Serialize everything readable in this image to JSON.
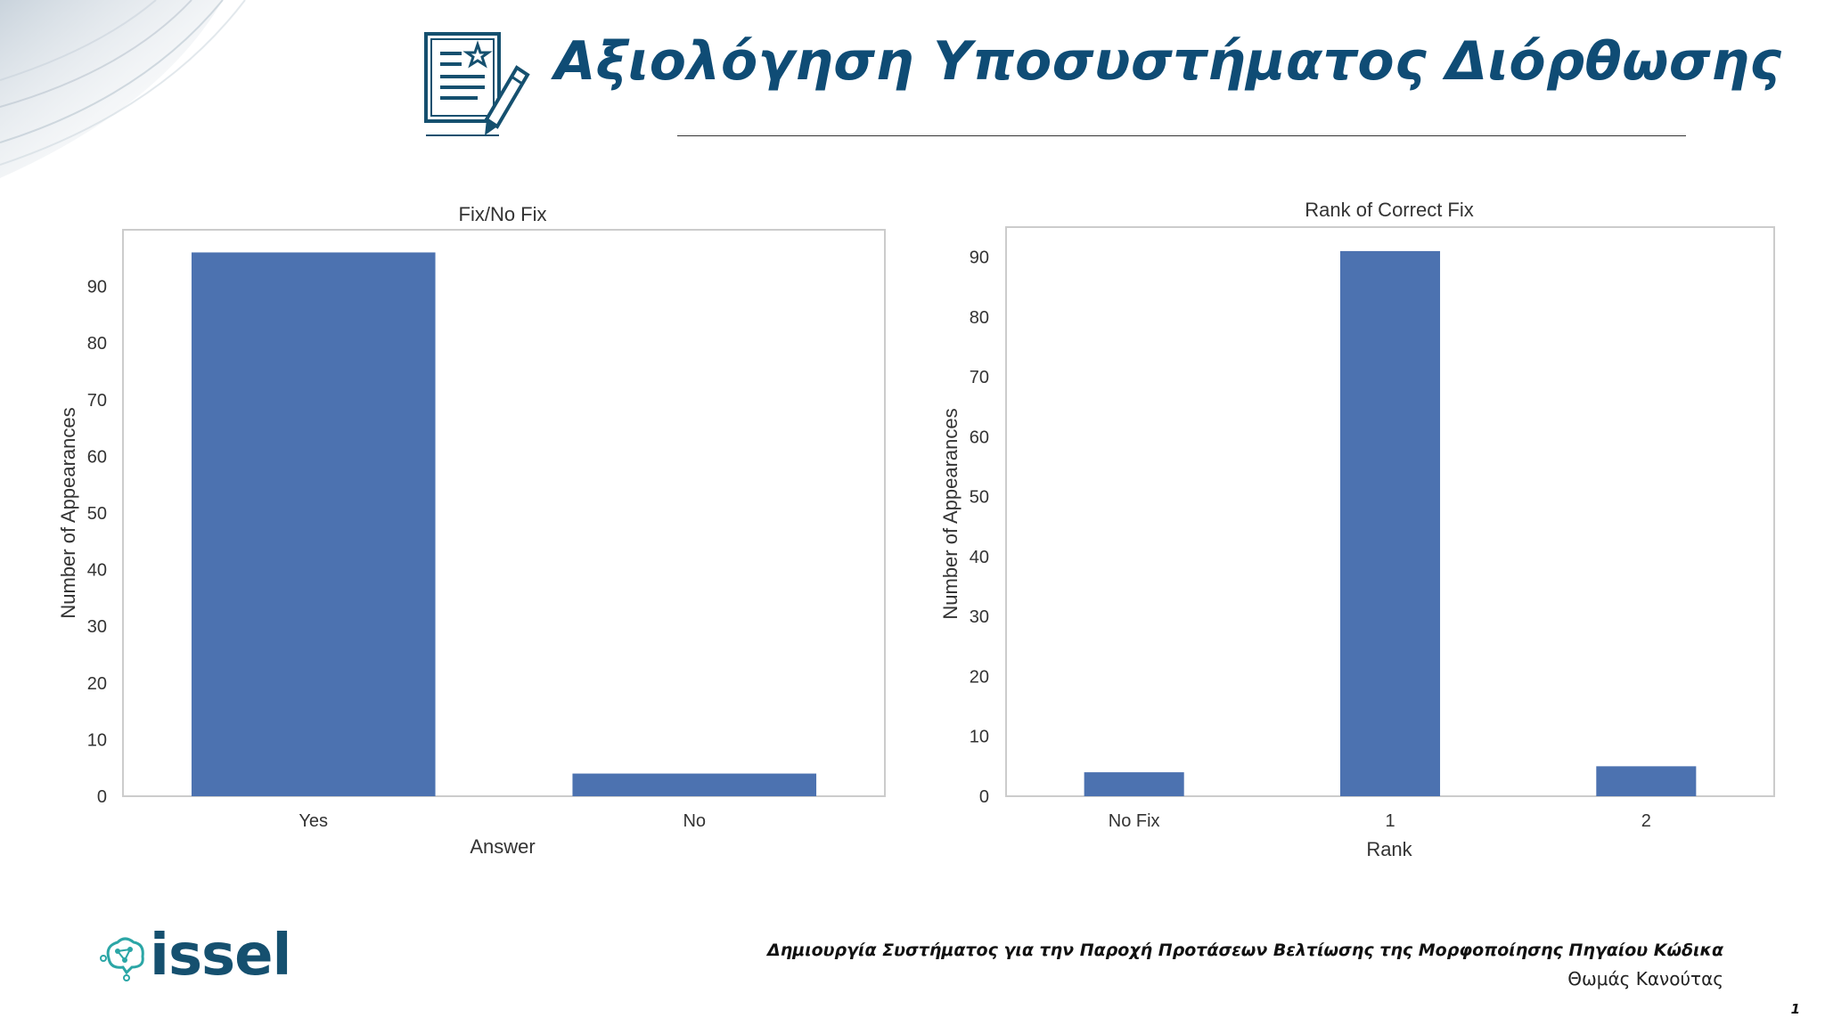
{
  "slide": {
    "title": "Αξιολόγηση Υποσυστήματος Διόρθωσης",
    "footer_subtitle": "Δημιουργία Συστήματος για την Παροχή Προτάσεων Βελτίωσης της Μορφοποίησης Πηγαίου Κώδικα",
    "footer_author": "Θωμάς Κανούτας",
    "page_number": "1",
    "logo_text": "issel",
    "icons": [
      "document-star-icon",
      "pencil-icon",
      "brain-network-icon"
    ],
    "colors": {
      "title": "#0f4c75",
      "bar": "#4c72b0",
      "logo": "#15506f",
      "logo_icon": "#2ba6a6"
    }
  },
  "chart_data": [
    {
      "type": "bar",
      "title": "Fix/No Fix",
      "xlabel": "Answer",
      "ylabel": "Number of Appearances",
      "categories": [
        "Yes",
        "No"
      ],
      "values": [
        96,
        4
      ],
      "ylim": [
        0,
        100
      ],
      "yticks": [
        0,
        10,
        20,
        30,
        40,
        50,
        60,
        70,
        80,
        90
      ],
      "grid": false
    },
    {
      "type": "bar",
      "title": "Rank of Correct Fix",
      "xlabel": "Rank",
      "ylabel": "Number of Appearances",
      "categories": [
        "No Fix",
        "1",
        "2"
      ],
      "values": [
        4,
        91,
        5
      ],
      "ylim": [
        0,
        95
      ],
      "yticks": [
        0,
        10,
        20,
        30,
        40,
        50,
        60,
        70,
        80,
        90
      ],
      "grid": false
    }
  ]
}
